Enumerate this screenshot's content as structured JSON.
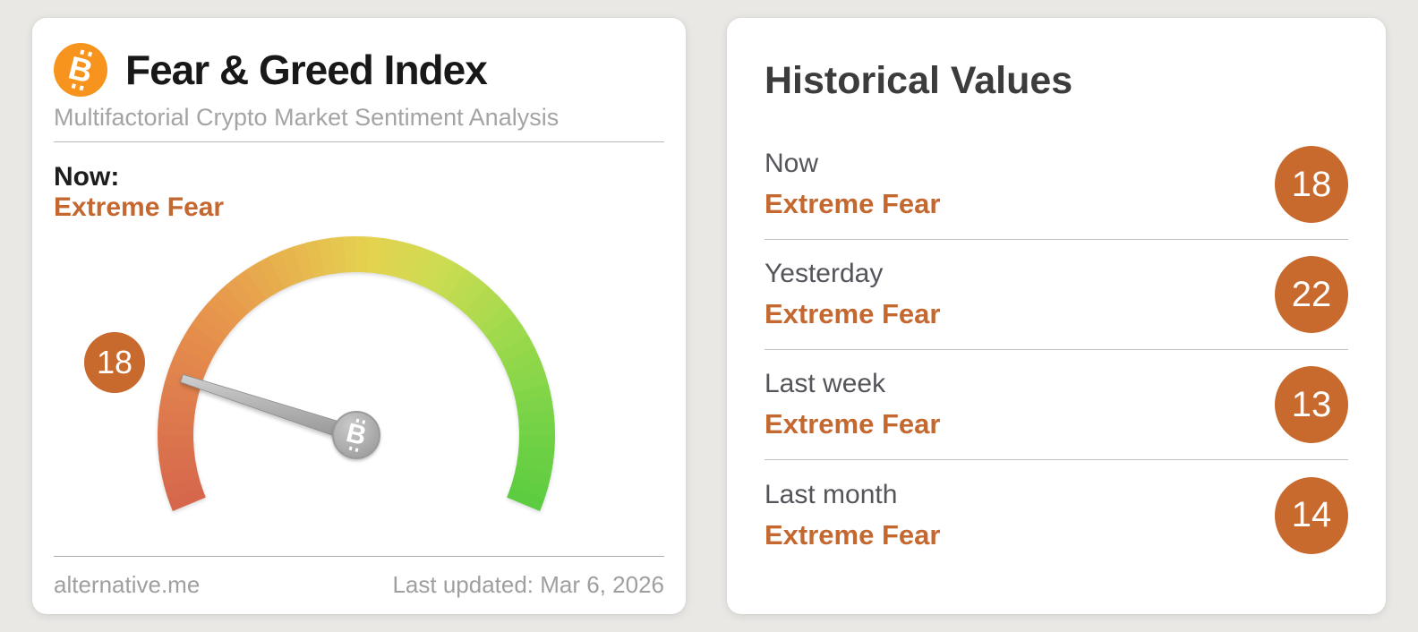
{
  "left_card": {
    "title": "Fear & Greed Index",
    "subtitle": "Multifactorial Crypto Market Sentiment Analysis",
    "now_label": "Now:",
    "now_value": "Extreme Fear",
    "gauge_value": "18",
    "footer_left": "alternative.me",
    "footer_right": "Last updated: Mar 6, 2026"
  },
  "right_card": {
    "title": "Historical Values",
    "rows": [
      {
        "period": "Now",
        "label": "Extreme Fear",
        "value": "18"
      },
      {
        "period": "Yesterday",
        "label": "Extreme Fear",
        "value": "22"
      },
      {
        "period": "Last week",
        "label": "Extreme Fear",
        "value": "13"
      },
      {
        "period": "Last month",
        "label": "Extreme Fear",
        "value": "14"
      }
    ]
  },
  "chart_data": {
    "type": "gauge",
    "title": "Fear & Greed Index",
    "value": 18,
    "min": 0,
    "max": 100,
    "label": "Extreme Fear",
    "start_angle_deg": 202.5,
    "end_angle_deg": -22.5,
    "gradient_stops": [
      {
        "t": 0.0,
        "color": "#d5664d"
      },
      {
        "t": 0.12,
        "color": "#dd784d"
      },
      {
        "t": 0.28,
        "color": "#e7954c"
      },
      {
        "t": 0.42,
        "color": "#e7b84e"
      },
      {
        "t": 0.52,
        "color": "#e4d24f"
      },
      {
        "t": 0.62,
        "color": "#ccdc51"
      },
      {
        "t": 0.75,
        "color": "#9ed94c"
      },
      {
        "t": 0.88,
        "color": "#77d347"
      },
      {
        "t": 1.0,
        "color": "#5bcb40"
      }
    ],
    "history": [
      {
        "period": "Now",
        "value": 18,
        "label": "Extreme Fear"
      },
      {
        "period": "Yesterday",
        "value": 22,
        "label": "Extreme Fear"
      },
      {
        "period": "Last week",
        "value": 13,
        "label": "Extreme Fear"
      },
      {
        "period": "Last month",
        "value": 14,
        "label": "Extreme Fear"
      }
    ]
  },
  "colors": {
    "accent_orange": "#c4682f",
    "badge_orange": "#c8692e",
    "bitcoin_orange": "#f7941d",
    "needle_gray": "#a0a0a0",
    "page_background": "#e9e8e5",
    "card_background": "#ffffff"
  }
}
